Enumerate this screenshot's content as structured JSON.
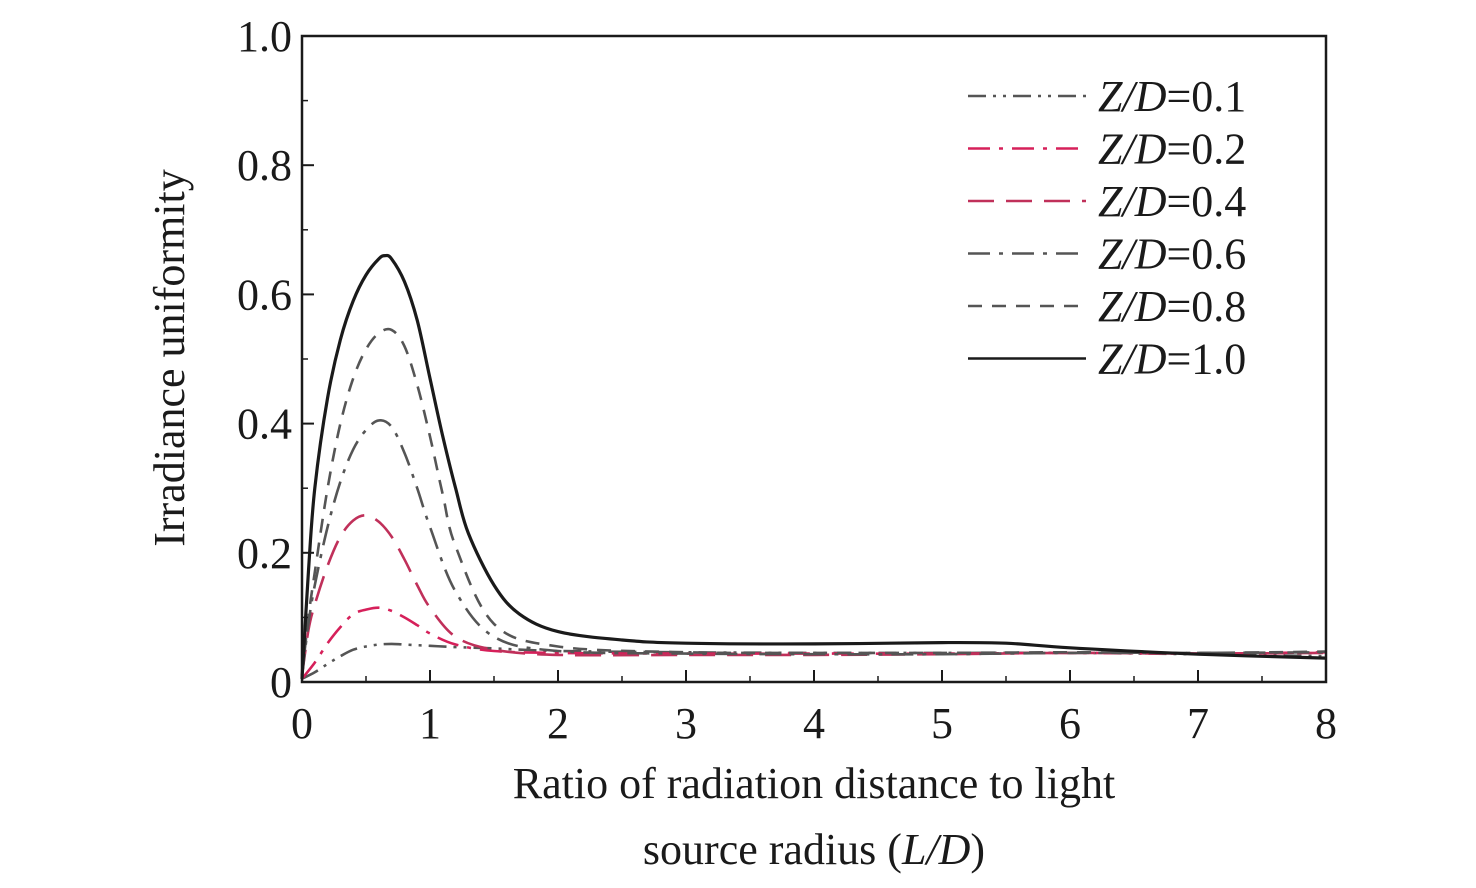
{
  "chart_data": {
    "type": "line",
    "title": "",
    "xlabel_line1": "Ratio of radiation distance to light",
    "xlabel_line2_prefix": "source radius (",
    "xlabel_line2_italic": "L/D",
    "xlabel_line2_suffix": ")",
    "ylabel": "Irradiance uniformity",
    "xlim": [
      0,
      8
    ],
    "ylim": [
      0,
      1.0
    ],
    "xticks": [
      "0",
      "1",
      "2",
      "3",
      "4",
      "5",
      "6",
      "7",
      "8"
    ],
    "yticks": [
      "0",
      "0.2",
      "0.4",
      "0.6",
      "0.8",
      "1.0"
    ],
    "grid": false,
    "legend_position": "top-right",
    "series": [
      {
        "name_italic": "Z/D",
        "name_value": "=0.1",
        "color": "#555555",
        "dash": "dash-dot-dot",
        "x": [
          0,
          0.1,
          0.2,
          0.3,
          0.4,
          0.5,
          0.6,
          0.7,
          0.8,
          1.0,
          1.2,
          1.5,
          2.0,
          3.0,
          4.0,
          5.0,
          6.0,
          7.0,
          8.0
        ],
        "y": [
          0.005,
          0.015,
          0.028,
          0.04,
          0.05,
          0.055,
          0.058,
          0.059,
          0.058,
          0.056,
          0.054,
          0.052,
          0.048,
          0.046,
          0.045,
          0.045,
          0.045,
          0.043,
          0.04
        ]
      },
      {
        "name_italic": "Z/D",
        "name_value": "=0.2",
        "color": "#d6205a",
        "dash": "dash-dot",
        "x": [
          0,
          0.1,
          0.2,
          0.3,
          0.4,
          0.5,
          0.6,
          0.7,
          0.8,
          0.9,
          1.0,
          1.2,
          1.5,
          2.0,
          3.0,
          4.0,
          5.0,
          6.0,
          7.0,
          8.0
        ],
        "y": [
          0.005,
          0.03,
          0.06,
          0.085,
          0.105,
          0.112,
          0.115,
          0.11,
          0.1,
          0.088,
          0.075,
          0.058,
          0.048,
          0.045,
          0.044,
          0.044,
          0.044,
          0.045,
          0.044,
          0.046
        ]
      },
      {
        "name_italic": "Z/D",
        "name_value": "=0.4",
        "color": "#c0305a",
        "dash": "long-dash",
        "x": [
          0,
          0.05,
          0.1,
          0.2,
          0.3,
          0.4,
          0.5,
          0.6,
          0.7,
          0.8,
          0.9,
          1.0,
          1.2,
          1.5,
          2.0,
          3.0,
          4.0,
          5.0,
          6.0,
          7.0,
          8.0
        ],
        "y": [
          0.01,
          0.08,
          0.12,
          0.18,
          0.225,
          0.25,
          0.258,
          0.248,
          0.225,
          0.19,
          0.15,
          0.115,
          0.07,
          0.05,
          0.042,
          0.042,
          0.042,
          0.043,
          0.045,
          0.044,
          0.045
        ]
      },
      {
        "name_italic": "Z/D",
        "name_value": "=0.6",
        "color": "#555555",
        "dash": "dash-dot",
        "x": [
          0,
          0.05,
          0.1,
          0.2,
          0.3,
          0.4,
          0.5,
          0.6,
          0.7,
          0.8,
          0.9,
          1.0,
          1.2,
          1.5,
          2.0,
          3.0,
          4.0,
          5.0,
          6.0,
          7.0,
          8.0
        ],
        "y": [
          0.01,
          0.09,
          0.15,
          0.24,
          0.31,
          0.36,
          0.39,
          0.405,
          0.395,
          0.355,
          0.3,
          0.24,
          0.14,
          0.07,
          0.048,
          0.044,
          0.043,
          0.043,
          0.045,
          0.045,
          0.046
        ]
      },
      {
        "name_italic": "Z/D",
        "name_value": "=0.8",
        "color": "#555555",
        "dash": "dash",
        "x": [
          0,
          0.05,
          0.1,
          0.2,
          0.3,
          0.4,
          0.5,
          0.6,
          0.7,
          0.8,
          0.9,
          1.0,
          1.1,
          1.2,
          1.5,
          2.0,
          3.0,
          4.0,
          5.0,
          6.0,
          7.0,
          8.0
        ],
        "y": [
          0.01,
          0.1,
          0.17,
          0.3,
          0.4,
          0.47,
          0.515,
          0.54,
          0.545,
          0.52,
          0.46,
          0.38,
          0.29,
          0.21,
          0.09,
          0.055,
          0.046,
          0.045,
          0.045,
          0.046,
          0.045,
          0.047
        ]
      },
      {
        "name_italic": "Z/D",
        "name_value": "=1.0",
        "color": "#1a1a1a",
        "dash": "solid",
        "x": [
          0,
          0.05,
          0.1,
          0.2,
          0.3,
          0.4,
          0.5,
          0.6,
          0.65,
          0.7,
          0.8,
          0.9,
          1.0,
          1.1,
          1.2,
          1.3,
          1.5,
          1.7,
          2.0,
          2.5,
          3.0,
          4.0,
          5.0,
          5.5,
          6.0,
          7.0,
          8.0
        ],
        "y": [
          0.005,
          0.17,
          0.3,
          0.44,
          0.53,
          0.59,
          0.63,
          0.655,
          0.66,
          0.655,
          0.62,
          0.56,
          0.47,
          0.38,
          0.3,
          0.23,
          0.15,
          0.105,
          0.078,
          0.065,
          0.06,
          0.059,
          0.061,
          0.06,
          0.053,
          0.043,
          0.037
        ]
      }
    ]
  }
}
